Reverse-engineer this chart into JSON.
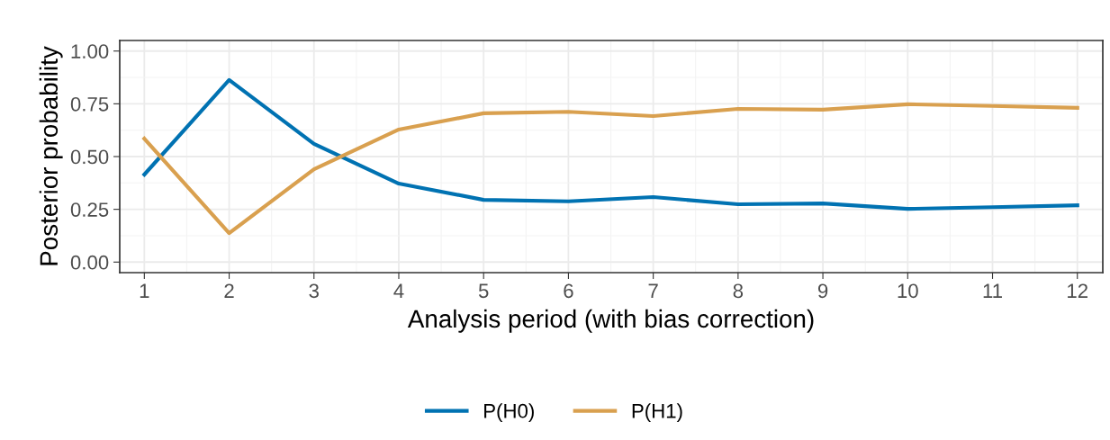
{
  "chart_data": {
    "type": "line",
    "xlabel": "Analysis period (with bias correction)",
    "ylabel": "Posterior probability",
    "x": [
      1,
      2,
      3,
      4,
      5,
      6,
      7,
      8,
      9,
      10,
      11,
      12
    ],
    "series": [
      {
        "name": "P(H0)",
        "color": "#0072b2",
        "values": [
          0.415,
          0.863,
          0.56,
          0.372,
          0.295,
          0.288,
          0.308,
          0.274,
          0.278,
          0.252,
          0.26,
          0.269
        ]
      },
      {
        "name": "P(H1)",
        "color": "#d9a04f",
        "values": [
          0.585,
          0.137,
          0.44,
          0.628,
          0.705,
          0.712,
          0.692,
          0.726,
          0.722,
          0.748,
          0.74,
          0.731
        ]
      }
    ],
    "xlim": [
      0.71,
      12.3
    ],
    "ylim": [
      -0.05,
      1.05
    ],
    "xticks": [
      1,
      2,
      3,
      4,
      5,
      6,
      7,
      8,
      9,
      10,
      11,
      12
    ],
    "yticks": [
      {
        "value": 0,
        "label": "0.00"
      },
      {
        "value": 0.25,
        "label": "0.25"
      },
      {
        "value": 0.5,
        "label": "0.50"
      },
      {
        "value": 0.75,
        "label": "0.75"
      },
      {
        "value": 1,
        "label": "1.00"
      }
    ],
    "grid": true,
    "legend": "bottom",
    "marker": "none",
    "line_style": "solid"
  }
}
